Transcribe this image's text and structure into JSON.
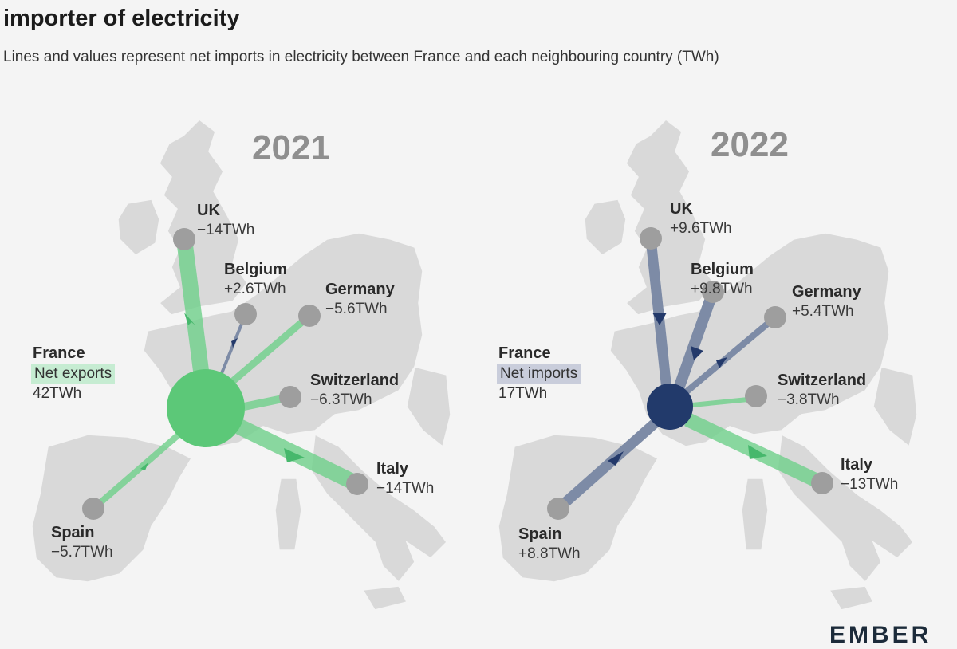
{
  "title": "importer of electricity",
  "subtitle": "Lines and values represent net imports in electricity between France and each neighbouring country (TWh)",
  "logo": "EMBER",
  "colors": {
    "export": "#6ecf8a",
    "export_dark": "#46b86c",
    "import": "#7d8ba6",
    "import_dark": "#23396a",
    "node": "#9e9e9e",
    "land": "#d9d9d9"
  },
  "maps": [
    {
      "year": "2021",
      "france": {
        "name": "France",
        "status": "Net exports",
        "value": "42TWh",
        "direction": "export"
      },
      "countries": [
        {
          "name": "UK",
          "value": "−14TWh",
          "direction": "export"
        },
        {
          "name": "Belgium",
          "value": "+2.6TWh",
          "direction": "import"
        },
        {
          "name": "Germany",
          "value": "−5.6TWh",
          "direction": "export"
        },
        {
          "name": "Switzerland",
          "value": "−6.3TWh",
          "direction": "export"
        },
        {
          "name": "Italy",
          "value": "−14TWh",
          "direction": "export"
        },
        {
          "name": "Spain",
          "value": "−5.7TWh",
          "direction": "export"
        }
      ]
    },
    {
      "year": "2022",
      "france": {
        "name": "France",
        "status": "Net imports",
        "value": "17TWh",
        "direction": "import"
      },
      "countries": [
        {
          "name": "UK",
          "value": "+9.6TWh",
          "direction": "import"
        },
        {
          "name": "Belgium",
          "value": "+9.8TWh",
          "direction": "import"
        },
        {
          "name": "Germany",
          "value": "+5.4TWh",
          "direction": "import"
        },
        {
          "name": "Switzerland",
          "value": "−3.8TWh",
          "direction": "export"
        },
        {
          "name": "Italy",
          "value": "−13TWh",
          "direction": "export"
        },
        {
          "name": "Spain",
          "value": "+8.8TWh",
          "direction": "import"
        }
      ]
    }
  ]
}
